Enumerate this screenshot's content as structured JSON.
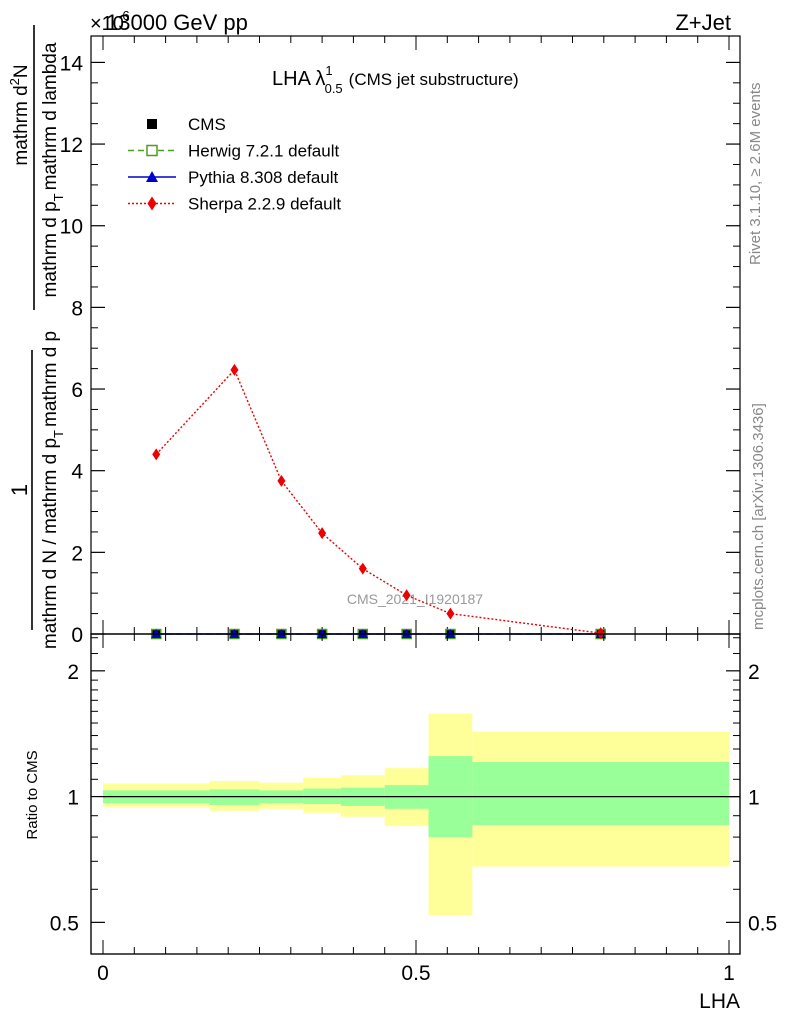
{
  "header": {
    "left_title": "13000 GeV pp",
    "right_title": "Z+Jet",
    "exponent_label": "×10",
    "exponent_power": "-6"
  },
  "side_labels": {
    "rivet": "Rivet 3.1.10, ≥ 2.6M events",
    "mcplots": "mcplots.cern.ch [arXiv:1306.3436]"
  },
  "watermark": "CMS_2021_I1920187",
  "chart_data": [
    {
      "type": "line",
      "title": "LHA λ",
      "title_sup": "1",
      "title_sub": "0.5",
      "title_suffix": "(CMS jet substructure)",
      "ylabel_top": "1",
      "ylabel_bottom": "mathrm d N / mathrm d p",
      "ylabel_bottom_sub": "T",
      "ylabel_bottom_tail": "mathrm d p",
      "ylabel_numerator": "mathrm d",
      "ylabel_numerator_sup": "2",
      "ylabel_numerator_tail": "N",
      "ylabel_denominator": "mathrm d p",
      "ylabel_denominator_sub": "T",
      "ylabel_denominator_tail": "mathrm d lambda",
      "xlim": [
        0,
        1
      ],
      "ylim": [
        0,
        14.5
      ],
      "y_ticks": [
        0,
        2,
        4,
        6,
        8,
        10,
        12,
        14
      ],
      "y_tick_labels": [
        "0",
        "2",
        "4",
        "6",
        "8",
        "10",
        "12",
        "14"
      ],
      "bin_edges": [
        0,
        0.17,
        0.25,
        0.32,
        0.38,
        0.45,
        0.52,
        0.59,
        1.0
      ],
      "x": [
        0.085,
        0.21,
        0.285,
        0.35,
        0.415,
        0.485,
        0.555,
        0.795
      ],
      "series": [
        {
          "name": "CMS",
          "marker": "square",
          "color": "#000000",
          "values": [
            0.0,
            0.0,
            0.0,
            0.0,
            0.0,
            0.0,
            0.0,
            0.0
          ]
        },
        {
          "name": "Herwig 7.2.1 default",
          "marker": "open-square",
          "color": "#4a9e1c",
          "line": "dashed",
          "values": [
            0.0,
            0.0,
            0.0,
            0.0,
            0.0,
            0.0,
            0.0,
            0.0
          ]
        },
        {
          "name": "Pythia 8.308 default",
          "marker": "triangle",
          "color": "#0000cc",
          "line": "solid",
          "values": [
            0.0,
            0.0,
            0.0,
            0.0,
            0.0,
            0.0,
            0.0,
            0.0
          ]
        },
        {
          "name": "Sherpa 2.2.9 default",
          "marker": "diamond",
          "color": "#ee0000",
          "line": "dotted",
          "values": [
            4.4,
            6.47,
            3.75,
            2.47,
            1.6,
            0.95,
            0.5,
            0.02
          ]
        }
      ],
      "legend_position": "top-left"
    },
    {
      "type": "area",
      "ylabel": "Ratio to CMS",
      "xlabel": "LHA",
      "yscale": "log",
      "ylim": [
        0.42,
        2.45
      ],
      "y_ticks": [
        0.5,
        1,
        2
      ],
      "y_tick_labels": [
        "0.5",
        "1",
        "2"
      ],
      "x_ticks": [
        0,
        0.5,
        1
      ],
      "x_tick_labels": [
        "0",
        "0.5",
        "1"
      ],
      "bin_edges": [
        0,
        0.17,
        0.25,
        0.32,
        0.38,
        0.45,
        0.52,
        0.59,
        1.0
      ],
      "inner_band": {
        "color": "#99ff99",
        "lower": [
          0.965,
          0.955,
          0.965,
          0.96,
          0.95,
          0.935,
          0.8,
          0.855,
          0.855
        ],
        "upper": [
          1.035,
          1.04,
          1.035,
          1.045,
          1.05,
          1.065,
          1.25,
          1.21,
          1.21
        ]
      },
      "outer_band": {
        "color": "#ffff99",
        "lower": [
          0.945,
          0.925,
          0.935,
          0.915,
          0.895,
          0.85,
          0.52,
          0.68,
          0.68
        ],
        "upper": [
          1.075,
          1.09,
          1.08,
          1.11,
          1.125,
          1.17,
          1.58,
          1.43,
          1.43
        ]
      },
      "reference": 1
    }
  ]
}
